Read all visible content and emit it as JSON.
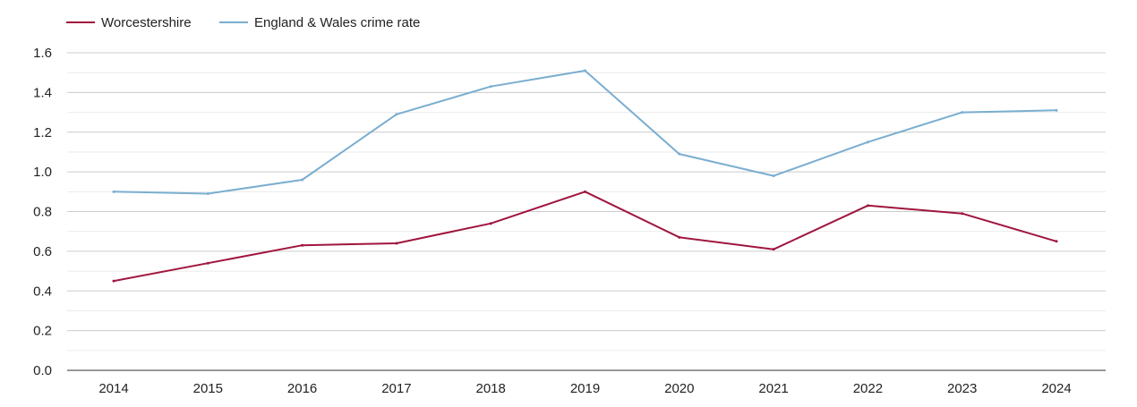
{
  "chart_data": {
    "type": "line",
    "categories": [
      "2014",
      "2015",
      "2016",
      "2017",
      "2018",
      "2019",
      "2020",
      "2021",
      "2022",
      "2023",
      "2024"
    ],
    "series": [
      {
        "name": "Worcestershire",
        "color": "#a0153e",
        "values": [
          0.45,
          0.54,
          0.63,
          0.64,
          0.74,
          0.9,
          0.67,
          0.61,
          0.83,
          0.79,
          0.65
        ]
      },
      {
        "name": "England & Wales crime rate",
        "color": "#7aaed0",
        "values": [
          0.9,
          0.89,
          0.96,
          1.29,
          1.43,
          1.51,
          1.09,
          0.98,
          1.15,
          1.3,
          1.31
        ]
      }
    ],
    "yticks": [
      "0.0",
      "0.2",
      "0.4",
      "0.6",
      "0.8",
      "1.0",
      "1.2",
      "1.4",
      "1.6"
    ],
    "ylim": [
      0,
      1.6
    ],
    "title": "",
    "xlabel": "",
    "ylabel": "",
    "grid": true,
    "minor_grid": true,
    "legend_position": "top-left"
  }
}
